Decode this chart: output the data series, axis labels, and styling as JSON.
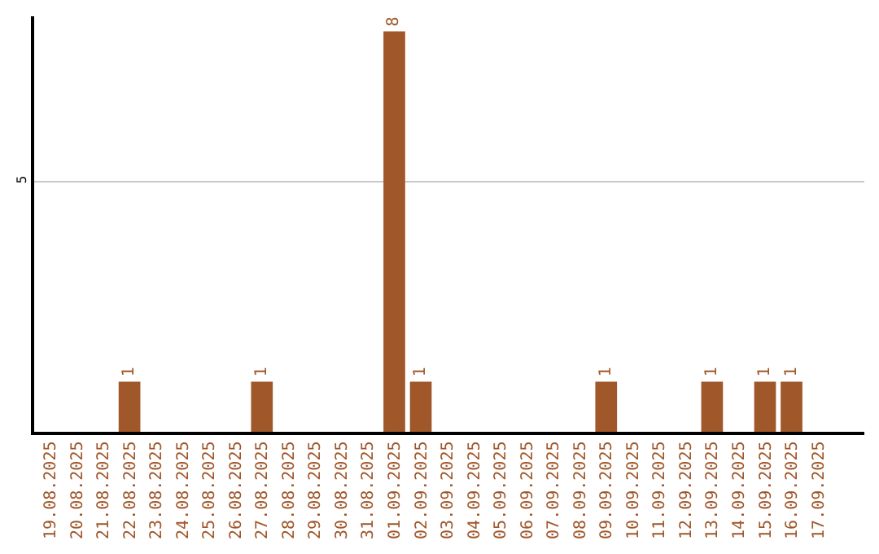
{
  "chart_data": {
    "type": "bar",
    "categories": [
      "19.08.2025",
      "20.08.2025",
      "21.08.2025",
      "22.08.2025",
      "23.08.2025",
      "24.08.2025",
      "25.08.2025",
      "26.08.2025",
      "27.08.2025",
      "28.08.2025",
      "29.08.2025",
      "30.08.2025",
      "31.08.2025",
      "01.09.2025",
      "02.09.2025",
      "03.09.2025",
      "04.09.2025",
      "05.09.2025",
      "06.09.2025",
      "07.09.2025",
      "08.09.2025",
      "09.09.2025",
      "10.09.2025",
      "11.09.2025",
      "12.09.2025",
      "13.09.2025",
      "14.09.2025",
      "15.09.2025",
      "16.09.2025",
      "17.09.2025"
    ],
    "values": [
      0,
      0,
      0,
      1,
      0,
      0,
      0,
      0,
      1,
      0,
      0,
      0,
      0,
      8,
      1,
      0,
      0,
      0,
      0,
      0,
      0,
      1,
      0,
      0,
      0,
      1,
      0,
      1,
      1,
      0
    ],
    "value_labels": [
      null,
      null,
      null,
      "1",
      null,
      null,
      null,
      null,
      "1",
      null,
      null,
      null,
      null,
      "8",
      "1",
      null,
      null,
      null,
      null,
      null,
      null,
      "1",
      null,
      null,
      null,
      "1",
      null,
      "1",
      "1",
      null
    ],
    "color": "#a0572a",
    "ylim": [
      0,
      8.3
    ],
    "yticks": [
      5
    ],
    "grid": "y",
    "legend": false
  }
}
